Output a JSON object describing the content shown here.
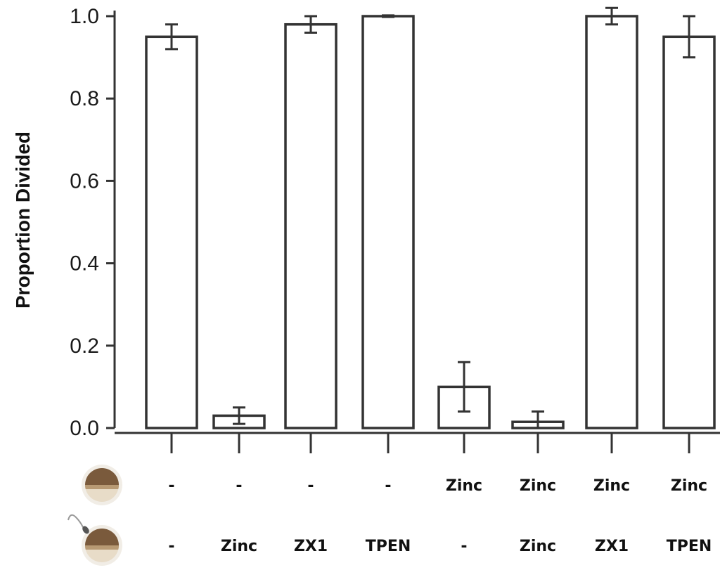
{
  "chart_data": {
    "type": "bar",
    "ylabel": "Proportion Divided",
    "ylim": [
      0,
      1.0
    ],
    "yticks": [
      "0.0",
      "0.2",
      "0.4",
      "0.6",
      "0.8",
      "1.0"
    ],
    "categories": [
      "1",
      "2",
      "3",
      "4",
      "5",
      "6",
      "7",
      "8"
    ],
    "values": [
      0.95,
      0.03,
      0.98,
      1.0,
      0.1,
      0.015,
      1.0,
      0.95
    ],
    "error": [
      0.03,
      0.02,
      0.02,
      0.002,
      0.06,
      0.025,
      0.02,
      0.05
    ],
    "bar_fill": "#ffffff",
    "bar_stroke": "#333333",
    "row1_labels": [
      "-",
      "-",
      "-",
      "-",
      "Zinc",
      "Zinc",
      "Zinc",
      "Zinc"
    ],
    "row2_labels": [
      "-",
      "Zinc",
      "ZX1",
      "TPEN",
      "-",
      "Zinc",
      "ZX1",
      "TPEN"
    ],
    "row_icons": [
      "egg-icon",
      "sperm-egg-icon"
    ]
  }
}
